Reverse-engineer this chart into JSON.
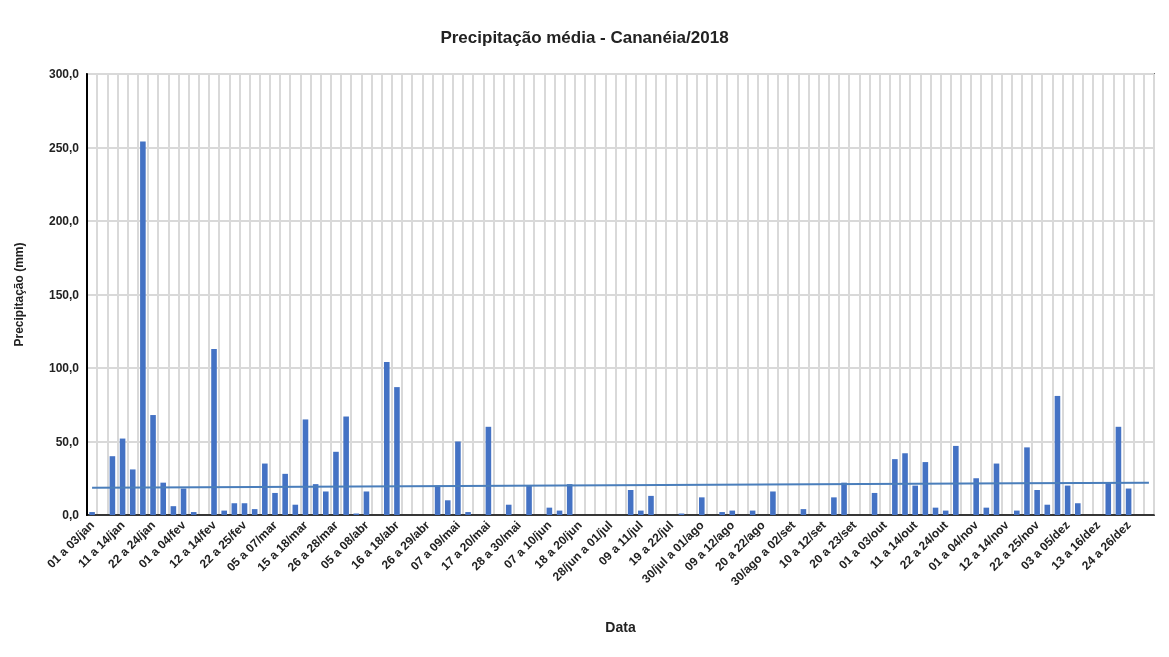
{
  "chart_data": {
    "type": "bar",
    "title": "Precipitação média - Cananéia/2018",
    "xlabel": "Data",
    "ylabel": "Precipitação (mm)",
    "categories": [
      "01 a 03/jan",
      null,
      null,
      "11 a 14/jan",
      null,
      null,
      "22 a 24/jan",
      null,
      null,
      "01 a 04/fev",
      null,
      null,
      "12 a 14/fev",
      null,
      null,
      "22 a 25/fev",
      null,
      null,
      "05 a 07/mar",
      null,
      null,
      "15 a 18/mar",
      null,
      null,
      "26 a 28/mar",
      null,
      null,
      "05 a 08/abr",
      null,
      null,
      "16 a 18/abr",
      null,
      null,
      "26 a 29/abr",
      null,
      null,
      "07 a 09/mai",
      null,
      null,
      "17 a 20/mai",
      null,
      null,
      "28 a 30/mai",
      null,
      null,
      "07 a 10/jun",
      null,
      null,
      "18 a 20/jun",
      null,
      null,
      "28/jun a 01/jul",
      null,
      null,
      "09 a 11/jul",
      null,
      null,
      "19 a 22/jul",
      null,
      null,
      "30/jul a 01/ago",
      null,
      null,
      "09 a 12/ago",
      null,
      null,
      "20 a 22/ago",
      null,
      null,
      "30/ago a 02/set",
      null,
      null,
      "10 a 12/set",
      null,
      null,
      "20 a 23/set",
      null,
      null,
      "01 a 03/out",
      null,
      null,
      "11 a 14/out",
      null,
      null,
      "22 a 24/out",
      null,
      null,
      "01 a 04/nov",
      null,
      null,
      "12 a 14/nov",
      null,
      null,
      "22 a 25/nov",
      null,
      null,
      "03 a 05/dez",
      null,
      null,
      "13 a 16/dez",
      null,
      null,
      "24 a 26/dez",
      null,
      null
    ],
    "series": [
      {
        "color": "#4472c4",
        "values": [
          2,
          null,
          40,
          52,
          31,
          254,
          68,
          22,
          6,
          18,
          2,
          null,
          113,
          3,
          8,
          8,
          4,
          35,
          15,
          28,
          7,
          65,
          21,
          16,
          43,
          67,
          1,
          16,
          null,
          104,
          87,
          null,
          null,
          null,
          20,
          10,
          50,
          2,
          null,
          60,
          null,
          7,
          null,
          20,
          null,
          5,
          3,
          21,
          null,
          null,
          null,
          null,
          null,
          17,
          3,
          13,
          null,
          null,
          1,
          null,
          12,
          null,
          2,
          3,
          null,
          3,
          null,
          16,
          null,
          null,
          4,
          null,
          null,
          12,
          22,
          null,
          null,
          15,
          null,
          38,
          42,
          20,
          36,
          5,
          3,
          47,
          null,
          25,
          5,
          35,
          null,
          3,
          46,
          17,
          7,
          81,
          20,
          8,
          null,
          null,
          22,
          60,
          18,
          null,
          null
        ]
      },
      {
        "type": "line",
        "color": "#4a7ebb",
        "values": [
          18.5,
          null,
          null,
          null,
          null,
          null,
          null,
          null,
          null,
          null,
          null,
          null,
          null,
          null,
          null,
          null,
          null,
          null,
          null,
          null,
          null,
          null,
          null,
          null,
          null,
          null,
          null,
          null,
          null,
          null,
          null,
          null,
          null,
          null,
          null,
          null,
          null,
          null,
          null,
          null,
          null,
          null,
          null,
          null,
          null,
          null,
          null,
          null,
          null,
          null,
          null,
          null,
          null,
          null,
          null,
          null,
          null,
          null,
          null,
          null,
          null,
          null,
          null,
          null,
          null,
          null,
          null,
          null,
          null,
          null,
          null,
          null,
          null,
          null,
          null,
          null,
          null,
          null,
          null,
          null,
          null,
          null,
          null,
          null,
          null,
          null,
          null,
          null,
          null,
          null,
          null,
          null,
          null,
          null,
          null,
          null,
          null,
          null,
          null,
          null,
          null,
          null,
          null,
          null,
          22
        ]
      }
    ],
    "ylim": [
      0,
      300
    ],
    "yticks": [
      {
        "value": 0,
        "label": "0,0"
      },
      {
        "value": 50,
        "label": "50,0"
      },
      {
        "value": 100,
        "label": "100,0"
      },
      {
        "value": 150,
        "label": "150,0"
      },
      {
        "value": 200,
        "label": "200,0"
      },
      {
        "value": 250,
        "label": "250,0"
      },
      {
        "value": 300,
        "label": "300,0"
      }
    ],
    "grid": true,
    "marker": "none"
  }
}
